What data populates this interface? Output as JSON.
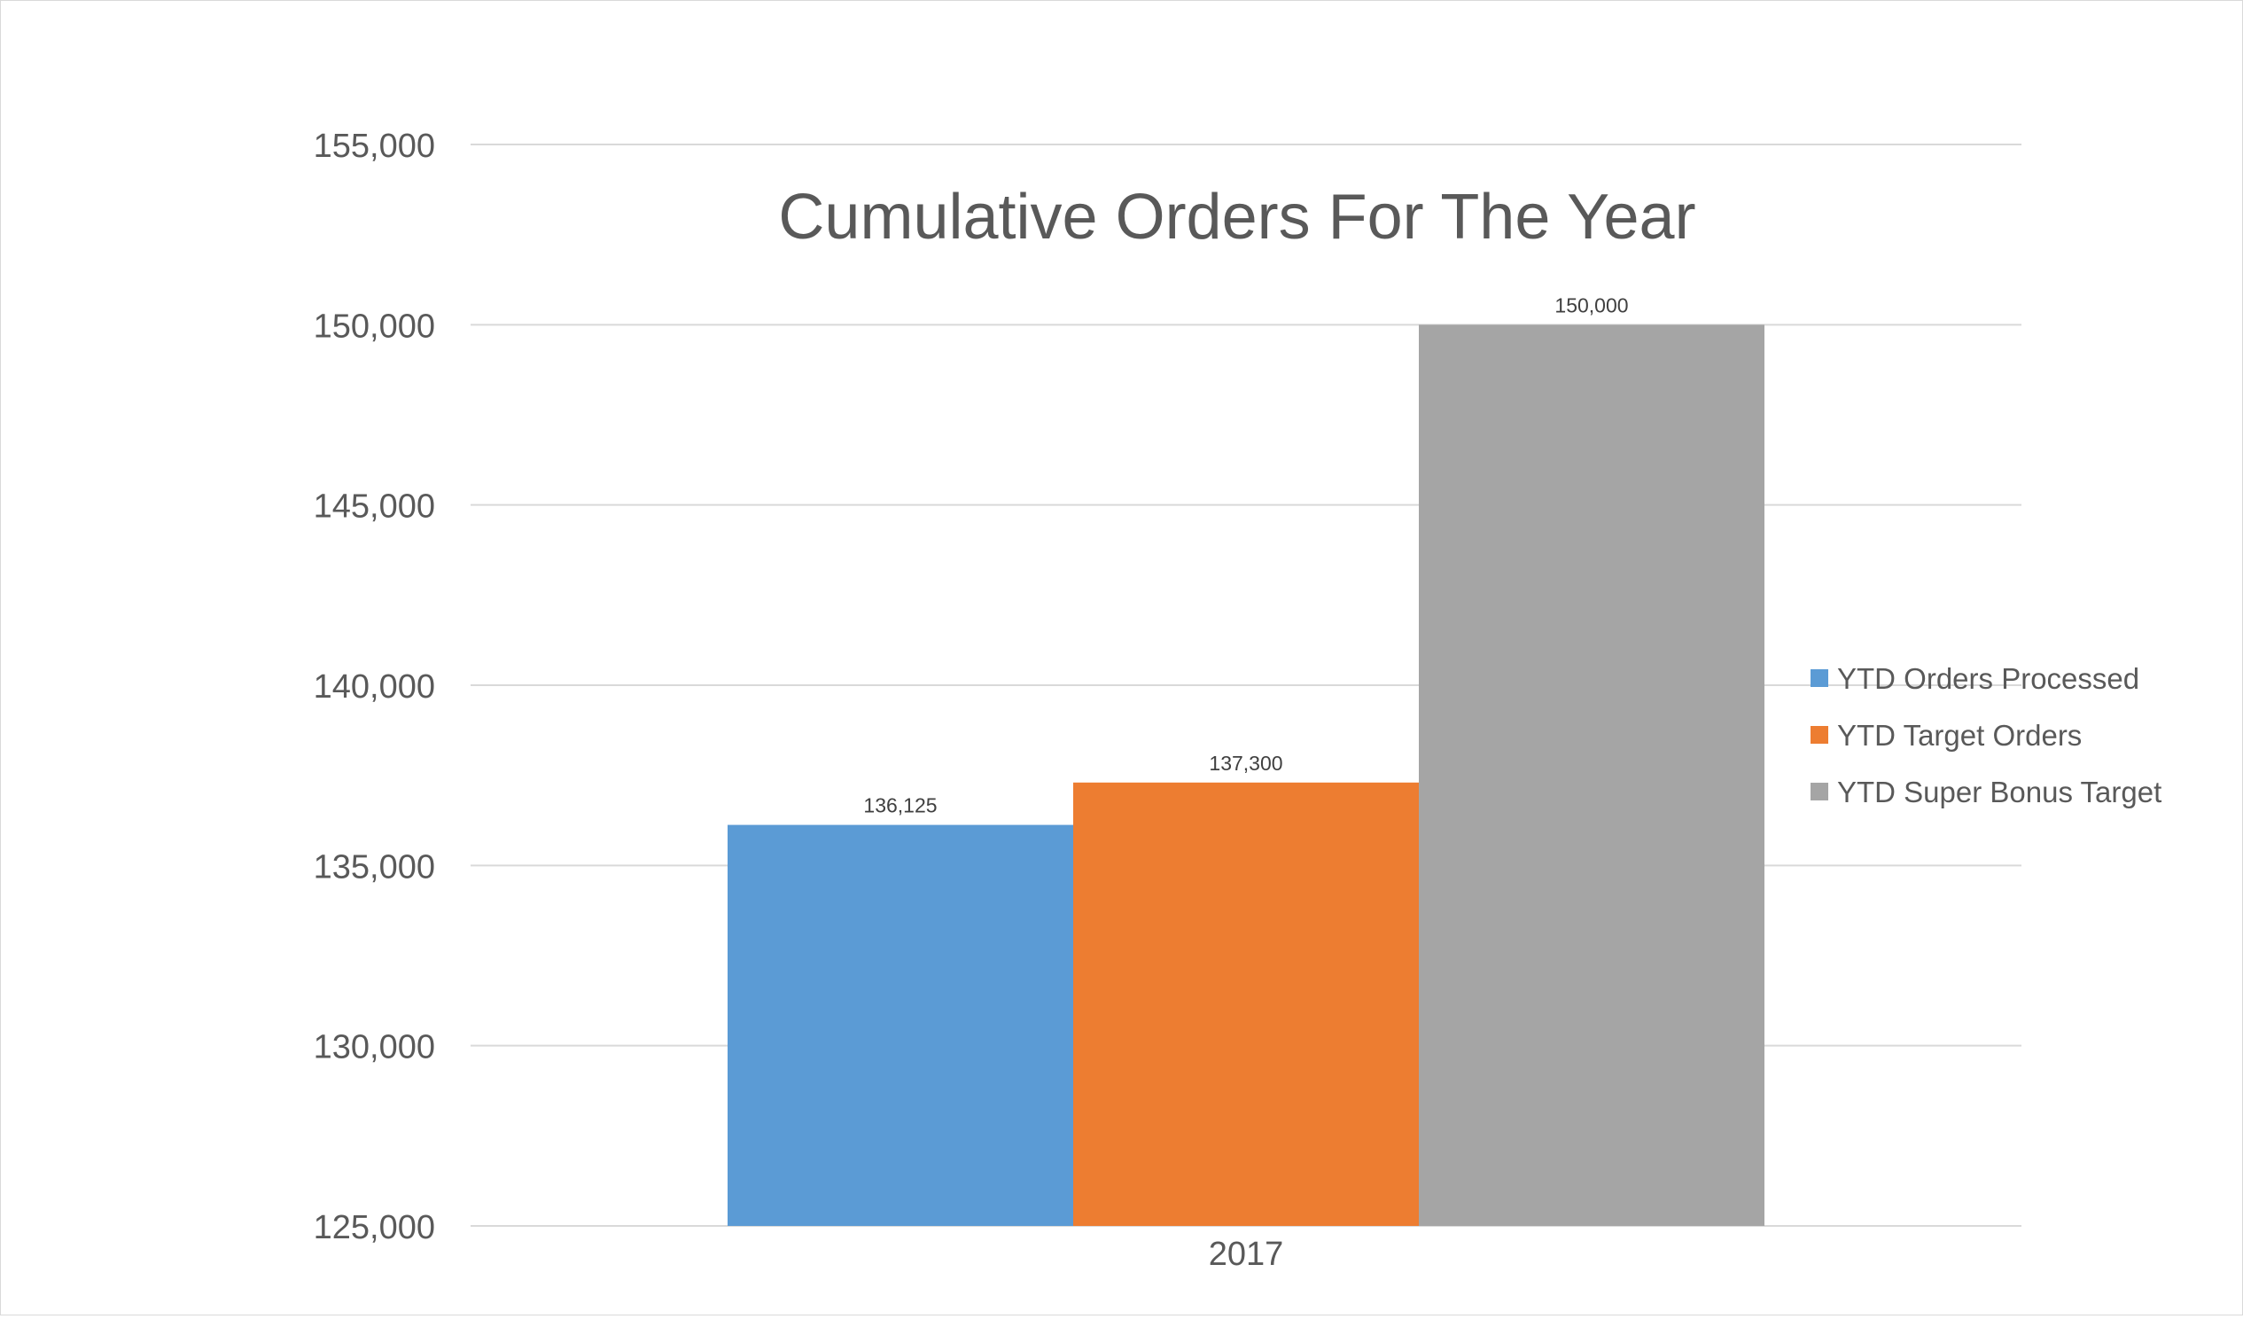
{
  "chart_data": {
    "type": "bar",
    "title": "Cumulative Orders For The Year",
    "xlabel": "",
    "ylabel": "",
    "categories": [
      "2017"
    ],
    "ylim": [
      125000,
      155000
    ],
    "yticks": [
      125000,
      130000,
      135000,
      140000,
      145000,
      150000,
      155000
    ],
    "ytick_labels": [
      "125,000",
      "130,000",
      "135,000",
      "140,000",
      "145,000",
      "150,000",
      "155,000"
    ],
    "grid": true,
    "legend_position": "right",
    "series": [
      {
        "name": "YTD Orders Processed",
        "values": [
          136125
        ],
        "value_labels": [
          "136,125"
        ],
        "color": "#5b9bd5"
      },
      {
        "name": "YTD Target Orders",
        "values": [
          137300
        ],
        "value_labels": [
          "137,300"
        ],
        "color": "#ed7d31"
      },
      {
        "name": "YTD Super Bonus Target",
        "values": [
          150000
        ],
        "value_labels": [
          "150,000"
        ],
        "color": "#a5a5a5"
      }
    ]
  }
}
